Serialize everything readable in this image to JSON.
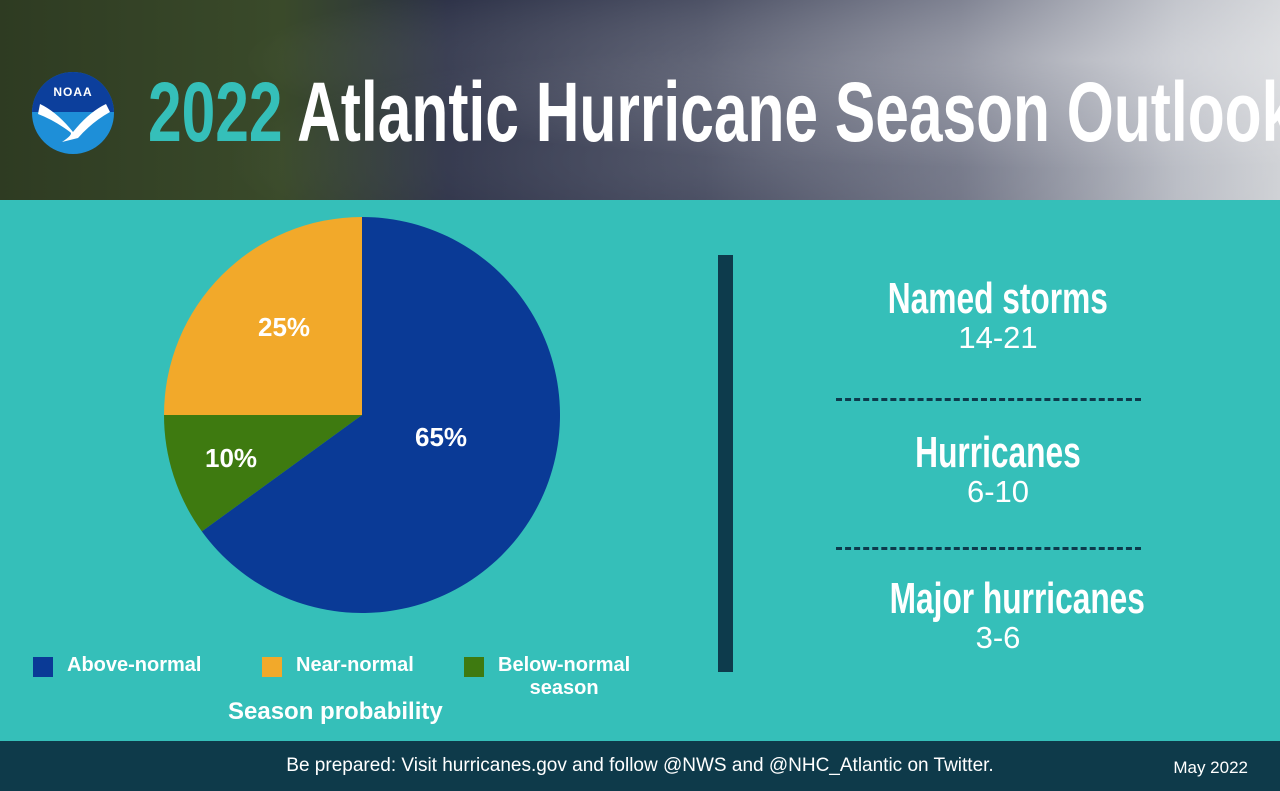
{
  "header": {
    "year": "2022",
    "title": "Atlantic Hurricane Season Outlook",
    "logo_text": "NOAA"
  },
  "colors": {
    "background": "#35bfb9",
    "above": "#0a3a96",
    "near": "#f2a92a",
    "below": "#3e7a10",
    "footer": "#0e3a4a"
  },
  "chart_data": {
    "type": "pie",
    "title": "Season probability",
    "categories": [
      "Above-normal",
      "Below-normal season",
      "Near-normal"
    ],
    "values": [
      65,
      10,
      25
    ],
    "labels": [
      "65%",
      "10%",
      "25%"
    ],
    "colors": [
      "#0a3a96",
      "#3e7a10",
      "#f2a92a"
    ],
    "legend": {
      "placement": "bottom",
      "items": [
        "Above-normal",
        "Near-normal",
        "Below-normal",
        "season"
      ]
    }
  },
  "stats": [
    {
      "label": "Named storms",
      "value": "14-21"
    },
    {
      "label": "Hurricanes",
      "value": "6-10"
    },
    {
      "label": "Major hurricanes",
      "value": "3-6"
    }
  ],
  "footer": {
    "message": "Be prepared: Visit hurricanes.gov and follow @NWS and @NHC_Atlantic on Twitter.",
    "date": "May 2022"
  }
}
